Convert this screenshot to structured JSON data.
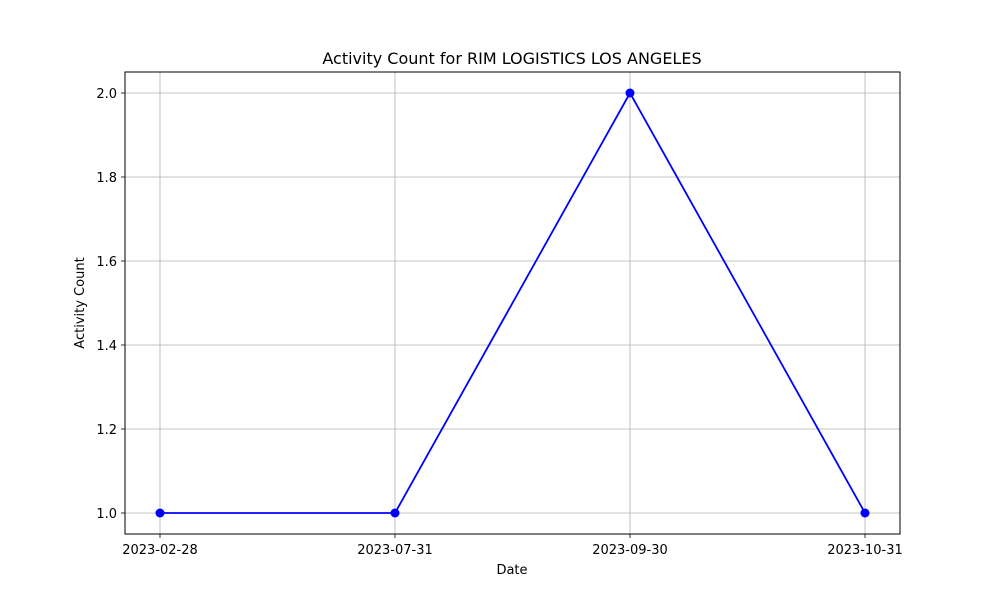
{
  "chart_data": {
    "type": "line",
    "title": "Activity Count for RIM LOGISTICS LOS ANGELES",
    "xlabel": "Date",
    "ylabel": "Activity Count",
    "categories": [
      "2023-02-28",
      "2023-07-31",
      "2023-09-30",
      "2023-10-31"
    ],
    "series": [
      {
        "values": [
          1,
          1,
          2,
          1
        ],
        "color": "#0000ff",
        "marker": "circle"
      }
    ],
    "ylim": [
      0.95,
      2.05
    ],
    "yticks": [
      1.0,
      1.2,
      1.4,
      1.6,
      1.8,
      2.0
    ],
    "ytick_labels": [
      "1.0",
      "1.2",
      "1.4",
      "1.6",
      "1.8",
      "2.0"
    ],
    "grid": true,
    "legend": false
  }
}
